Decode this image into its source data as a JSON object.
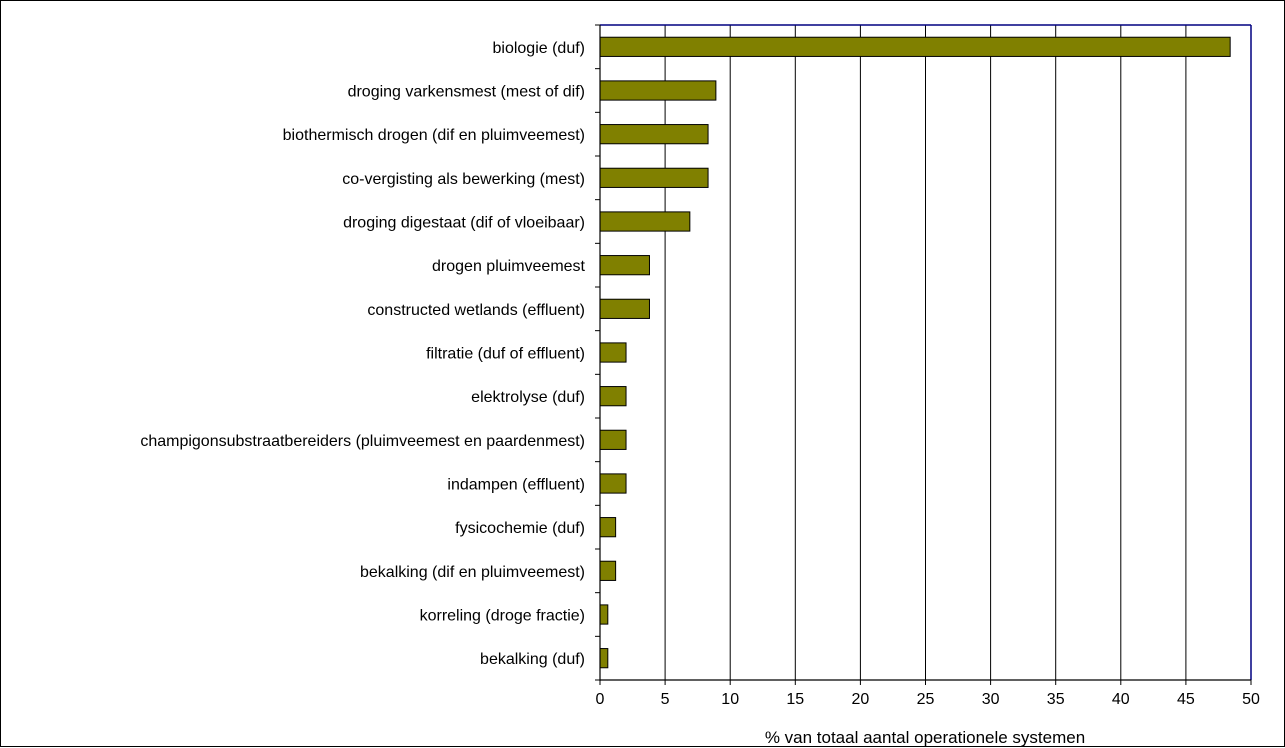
{
  "chart_data": {
    "type": "bar",
    "orientation": "horizontal",
    "categories": [
      "biologie (duf)",
      "droging varkensmest (mest of dif)",
      "biothermisch drogen (dif en pluimveemest)",
      "co-vergisting als bewerking (mest)",
      "droging digestaat (dif of vloeibaar)",
      "drogen pluimveemest",
      "constructed wetlands (effluent)",
      "filtratie (duf of effluent)",
      "elektrolyse (duf)",
      "champigonsubstraatbereiders (pluimveemest en paardenmest)",
      "indampen (effluent)",
      "fysicochemie (duf)",
      "bekalking (dif en pluimveemest)",
      "korreling (droge fractie)",
      "bekalking (duf)"
    ],
    "values": [
      48.4,
      8.9,
      8.3,
      8.3,
      6.9,
      3.8,
      3.8,
      2.0,
      2.0,
      2.0,
      2.0,
      1.2,
      1.2,
      0.6,
      0.6
    ],
    "xlabel": "% van totaal aantal operationele systemen",
    "ylabel": "",
    "title": "",
    "xlim": [
      0,
      50
    ],
    "xticks": [
      0,
      5,
      10,
      15,
      20,
      25,
      30,
      35,
      40,
      45,
      50
    ],
    "grid": "vertical gridlines",
    "bar_color": "#808000",
    "gridline_color": "#000000",
    "plot_border_color": "#000080",
    "legend": "none"
  }
}
